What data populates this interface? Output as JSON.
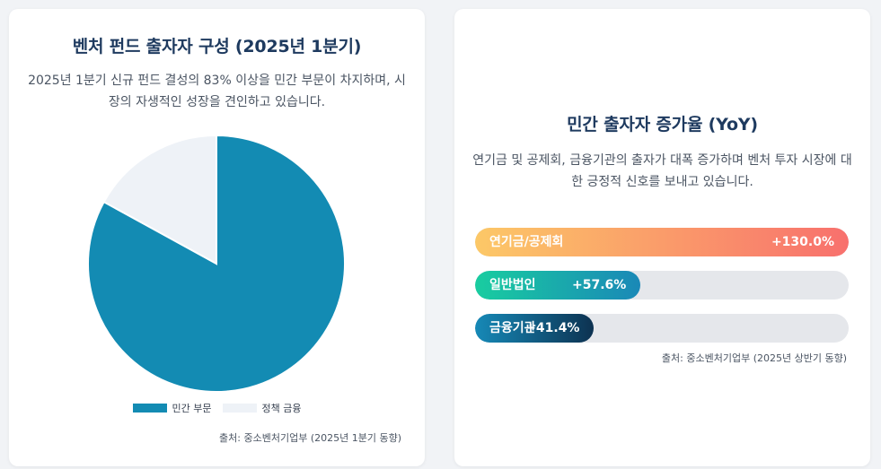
{
  "left_card": {
    "title": "벤처 펀드 출자자 구성 (2025년 1분기)",
    "description": "2025년 1분기 신규 펀드 결성의 83% 이상을 민간 부문이 차지하며, 시장의 자생적인 성장을 견인하고 있습니다.",
    "source": "출처: 중소벤처기업부 (2025년 1분기 동향)"
  },
  "right_card": {
    "title": "민간 출자자 증가율 (YoY)",
    "description": "연기금 및 공제회, 금융기관의 출자가 대폭 증가하며 벤처 투자 시장에 대한 긍정적 신호를 보내고 있습니다.",
    "source": "출처: 중소벤처기업부 (2025년 상반기 동향)"
  },
  "chart_data": [
    {
      "type": "pie",
      "labels": [
        "민간 부문",
        "정책 금융"
      ],
      "values": [
        83,
        17
      ],
      "colors": [
        "#138bb3",
        "#eef2f7"
      ],
      "legend": "bottom"
    },
    {
      "type": "bar",
      "orientation": "horizontal",
      "categories": [
        "연기금/공제회",
        "일반법인",
        "금융기관"
      ],
      "values": [
        130.0,
        57.6,
        41.4
      ],
      "value_labels": [
        "+130.0%",
        "+57.6%",
        "+41.4%"
      ],
      "xlim": [
        0,
        130
      ],
      "colors": [
        [
          "#fcc867",
          "#f8706d"
        ],
        [
          "#19cda0",
          "#1a88b7"
        ],
        [
          "#1689b7",
          "#0d3251"
        ]
      ]
    }
  ]
}
